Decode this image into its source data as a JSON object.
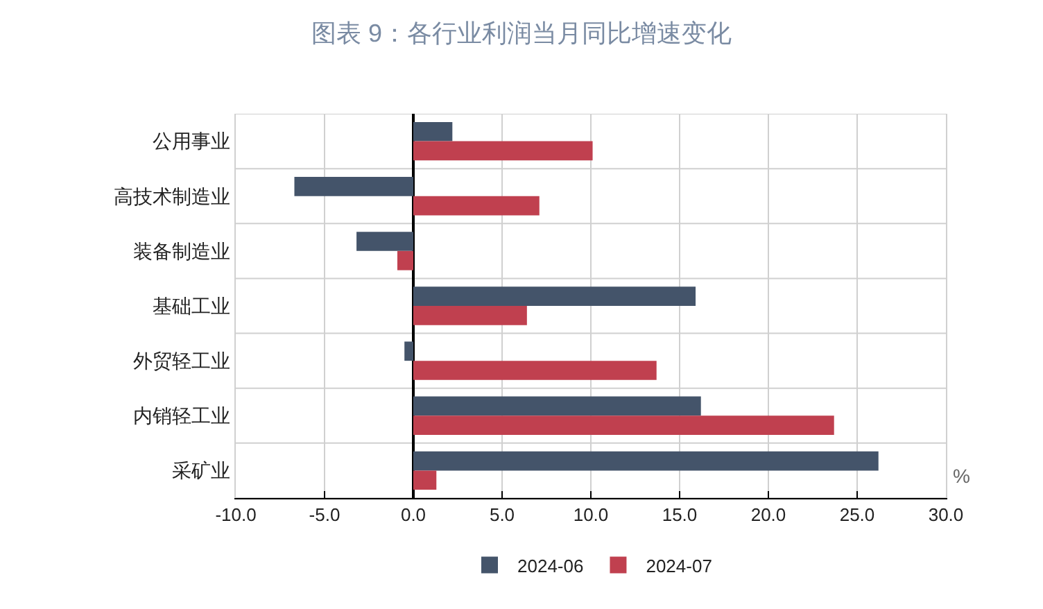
{
  "chart_data": {
    "type": "bar",
    "orientation": "horizontal",
    "title": "图表 9：各行业利润当月同比增速变化",
    "categories": [
      "公用事业",
      "高技术制造业",
      "装备制造业",
      "基础工业",
      "外贸轻工业",
      "内销轻工业",
      "采矿业"
    ],
    "series": [
      {
        "name": "2024-06",
        "color": "#44546a",
        "values": [
          2.2,
          -6.7,
          -3.2,
          15.9,
          -0.5,
          16.2,
          26.2
        ]
      },
      {
        "name": "2024-07",
        "color": "#c0404f",
        "values": [
          10.1,
          7.1,
          -0.9,
          6.4,
          13.7,
          23.7,
          1.3
        ]
      }
    ],
    "xlim": [
      -10,
      30
    ],
    "xticks": [
      {
        "value": -10,
        "label": "-10.0"
      },
      {
        "value": -5,
        "label": "-5.0"
      },
      {
        "value": 0,
        "label": "0.0"
      },
      {
        "value": 5,
        "label": "5.0"
      },
      {
        "value": 10,
        "label": "10.0"
      },
      {
        "value": 15,
        "label": "15.0"
      },
      {
        "value": 20,
        "label": "20.0"
      },
      {
        "value": 25,
        "label": "25.0"
      },
      {
        "value": 30,
        "label": "30.0"
      }
    ],
    "grid": true,
    "legend": "bottom",
    "annotations": [
      "%"
    ]
  }
}
